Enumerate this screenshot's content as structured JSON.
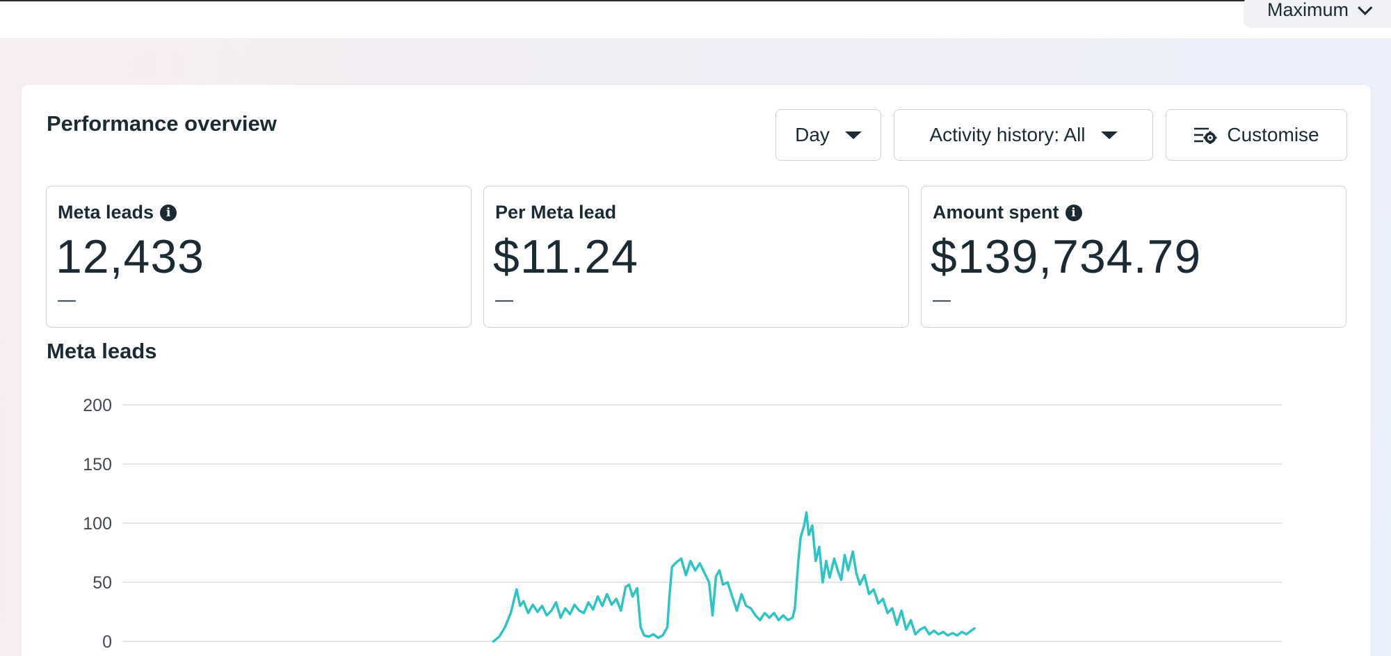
{
  "topbar": {
    "date_selector_label": "Maximum"
  },
  "overview": {
    "title": "Performance overview",
    "controls": {
      "granularity": "Day",
      "activity_history": "Activity history: All",
      "customise": "Customise"
    }
  },
  "metrics": [
    {
      "label": "Meta leads",
      "value": "12,433",
      "comparison": "—",
      "has_info_icon": true
    },
    {
      "label": "Per Meta lead",
      "value": "$11.24",
      "comparison": "—",
      "has_info_icon": false
    },
    {
      "label": "Amount spent",
      "value": "$139,734.79",
      "comparison": "—",
      "has_info_icon": true
    }
  ],
  "icons": {
    "info": "info-icon",
    "caret": "caret-down-icon",
    "customise": "sliders-gear-icon"
  },
  "colors": {
    "series": "#2ec4c4",
    "grid": "#dadde1",
    "text": "#1c2b33"
  },
  "chart_data": {
    "type": "line",
    "title": "Meta leads",
    "xlabel": "",
    "ylabel": "",
    "ylim": [
      0,
      200
    ],
    "yticks": [
      "200",
      "150",
      "100",
      "50",
      "0"
    ],
    "grid": true,
    "x_unit": "day index",
    "xlim": [
      0,
      1000
    ],
    "series": [
      {
        "color": "#2ec4c4",
        "points": [
          [
            320,
            0
          ],
          [
            325,
            4
          ],
          [
            330,
            12
          ],
          [
            335,
            24
          ],
          [
            338,
            36
          ],
          [
            340,
            44
          ],
          [
            343,
            30
          ],
          [
            346,
            34
          ],
          [
            350,
            24
          ],
          [
            354,
            31
          ],
          [
            358,
            25
          ],
          [
            362,
            30
          ],
          [
            366,
            22
          ],
          [
            370,
            26
          ],
          [
            374,
            33
          ],
          [
            378,
            20
          ],
          [
            382,
            28
          ],
          [
            386,
            23
          ],
          [
            390,
            31
          ],
          [
            394,
            26
          ],
          [
            398,
            24
          ],
          [
            402,
            33
          ],
          [
            406,
            27
          ],
          [
            410,
            38
          ],
          [
            414,
            30
          ],
          [
            418,
            40
          ],
          [
            422,
            31
          ],
          [
            426,
            36
          ],
          [
            430,
            26
          ],
          [
            434,
            46
          ],
          [
            437,
            48
          ],
          [
            440,
            38
          ],
          [
            444,
            45
          ],
          [
            447,
            12
          ],
          [
            450,
            5
          ],
          [
            454,
            4
          ],
          [
            458,
            6
          ],
          [
            462,
            3
          ],
          [
            466,
            5
          ],
          [
            470,
            12
          ],
          [
            472,
            40
          ],
          [
            474,
            63
          ],
          [
            478,
            67
          ],
          [
            482,
            70
          ],
          [
            486,
            56
          ],
          [
            490,
            68
          ],
          [
            494,
            60
          ],
          [
            498,
            66
          ],
          [
            502,
            58
          ],
          [
            506,
            50
          ],
          [
            509,
            22
          ],
          [
            512,
            55
          ],
          [
            515,
            60
          ],
          [
            518,
            48
          ],
          [
            522,
            50
          ],
          [
            526,
            38
          ],
          [
            530,
            26
          ],
          [
            534,
            40
          ],
          [
            538,
            30
          ],
          [
            542,
            28
          ],
          [
            546,
            22
          ],
          [
            550,
            18
          ],
          [
            554,
            24
          ],
          [
            558,
            20
          ],
          [
            562,
            24
          ],
          [
            566,
            18
          ],
          [
            570,
            22
          ],
          [
            574,
            18
          ],
          [
            578,
            20
          ],
          [
            580,
            28
          ],
          [
            583,
            68
          ],
          [
            585,
            88
          ],
          [
            588,
            98
          ],
          [
            590,
            109
          ],
          [
            592,
            90
          ],
          [
            595,
            98
          ],
          [
            598,
            68
          ],
          [
            601,
            80
          ],
          [
            604,
            50
          ],
          [
            607,
            68
          ],
          [
            610,
            54
          ],
          [
            614,
            70
          ],
          [
            617,
            60
          ],
          [
            620,
            52
          ],
          [
            623,
            73
          ],
          [
            626,
            60
          ],
          [
            630,
            76
          ],
          [
            633,
            58
          ],
          [
            636,
            48
          ],
          [
            640,
            56
          ],
          [
            644,
            40
          ],
          [
            648,
            44
          ],
          [
            652,
            32
          ],
          [
            656,
            36
          ],
          [
            660,
            24
          ],
          [
            664,
            28
          ],
          [
            668,
            14
          ],
          [
            672,
            26
          ],
          [
            676,
            10
          ],
          [
            680,
            18
          ],
          [
            684,
            6
          ],
          [
            688,
            10
          ],
          [
            692,
            12
          ],
          [
            696,
            6
          ],
          [
            700,
            9
          ],
          [
            704,
            6
          ],
          [
            708,
            8
          ],
          [
            712,
            5
          ],
          [
            716,
            7
          ],
          [
            720,
            5
          ],
          [
            724,
            8
          ],
          [
            728,
            6
          ],
          [
            732,
            9
          ],
          [
            735,
            11
          ]
        ]
      }
    ]
  }
}
